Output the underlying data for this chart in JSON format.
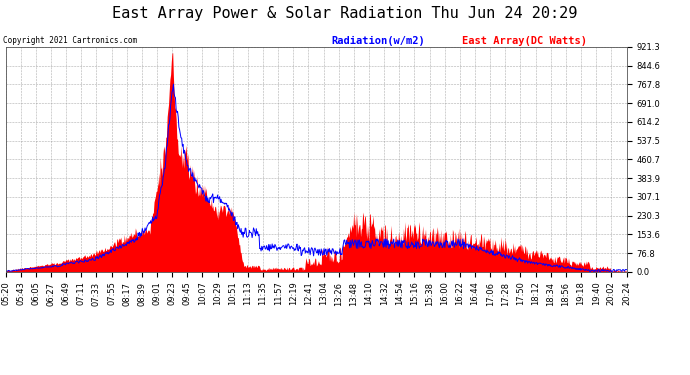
{
  "title": "East Array Power & Solar Radiation Thu Jun 24 20:29",
  "copyright": "Copyright 2021 Cartronics.com",
  "legend_radiation": "Radiation(w/m2)",
  "legend_east_array": "East Array(DC Watts)",
  "legend_radiation_color": "blue",
  "legend_east_array_color": "red",
  "y_max": 921.3,
  "y_min": 0.0,
  "y_ticks": [
    0.0,
    76.8,
    153.6,
    230.3,
    307.1,
    383.9,
    460.7,
    537.5,
    614.2,
    691.0,
    767.8,
    844.6,
    921.3
  ],
  "background_color": "#ffffff",
  "plot_bg_color": "#ffffff",
  "grid_color": "#999999",
  "fill_color": "red",
  "line_color": "blue",
  "title_fontsize": 11,
  "tick_fontsize": 6,
  "x_labels": [
    "05:20",
    "05:43",
    "06:05",
    "06:27",
    "06:49",
    "07:11",
    "07:33",
    "07:55",
    "08:17",
    "08:39",
    "09:01",
    "09:23",
    "09:45",
    "10:07",
    "10:29",
    "10:51",
    "11:13",
    "11:35",
    "11:57",
    "12:19",
    "12:41",
    "13:04",
    "13:26",
    "13:48",
    "14:10",
    "14:32",
    "14:54",
    "15:16",
    "15:38",
    "16:00",
    "16:22",
    "16:44",
    "17:06",
    "17:28",
    "17:50",
    "18:12",
    "18:34",
    "18:56",
    "19:18",
    "19:40",
    "20:02",
    "20:24"
  ]
}
